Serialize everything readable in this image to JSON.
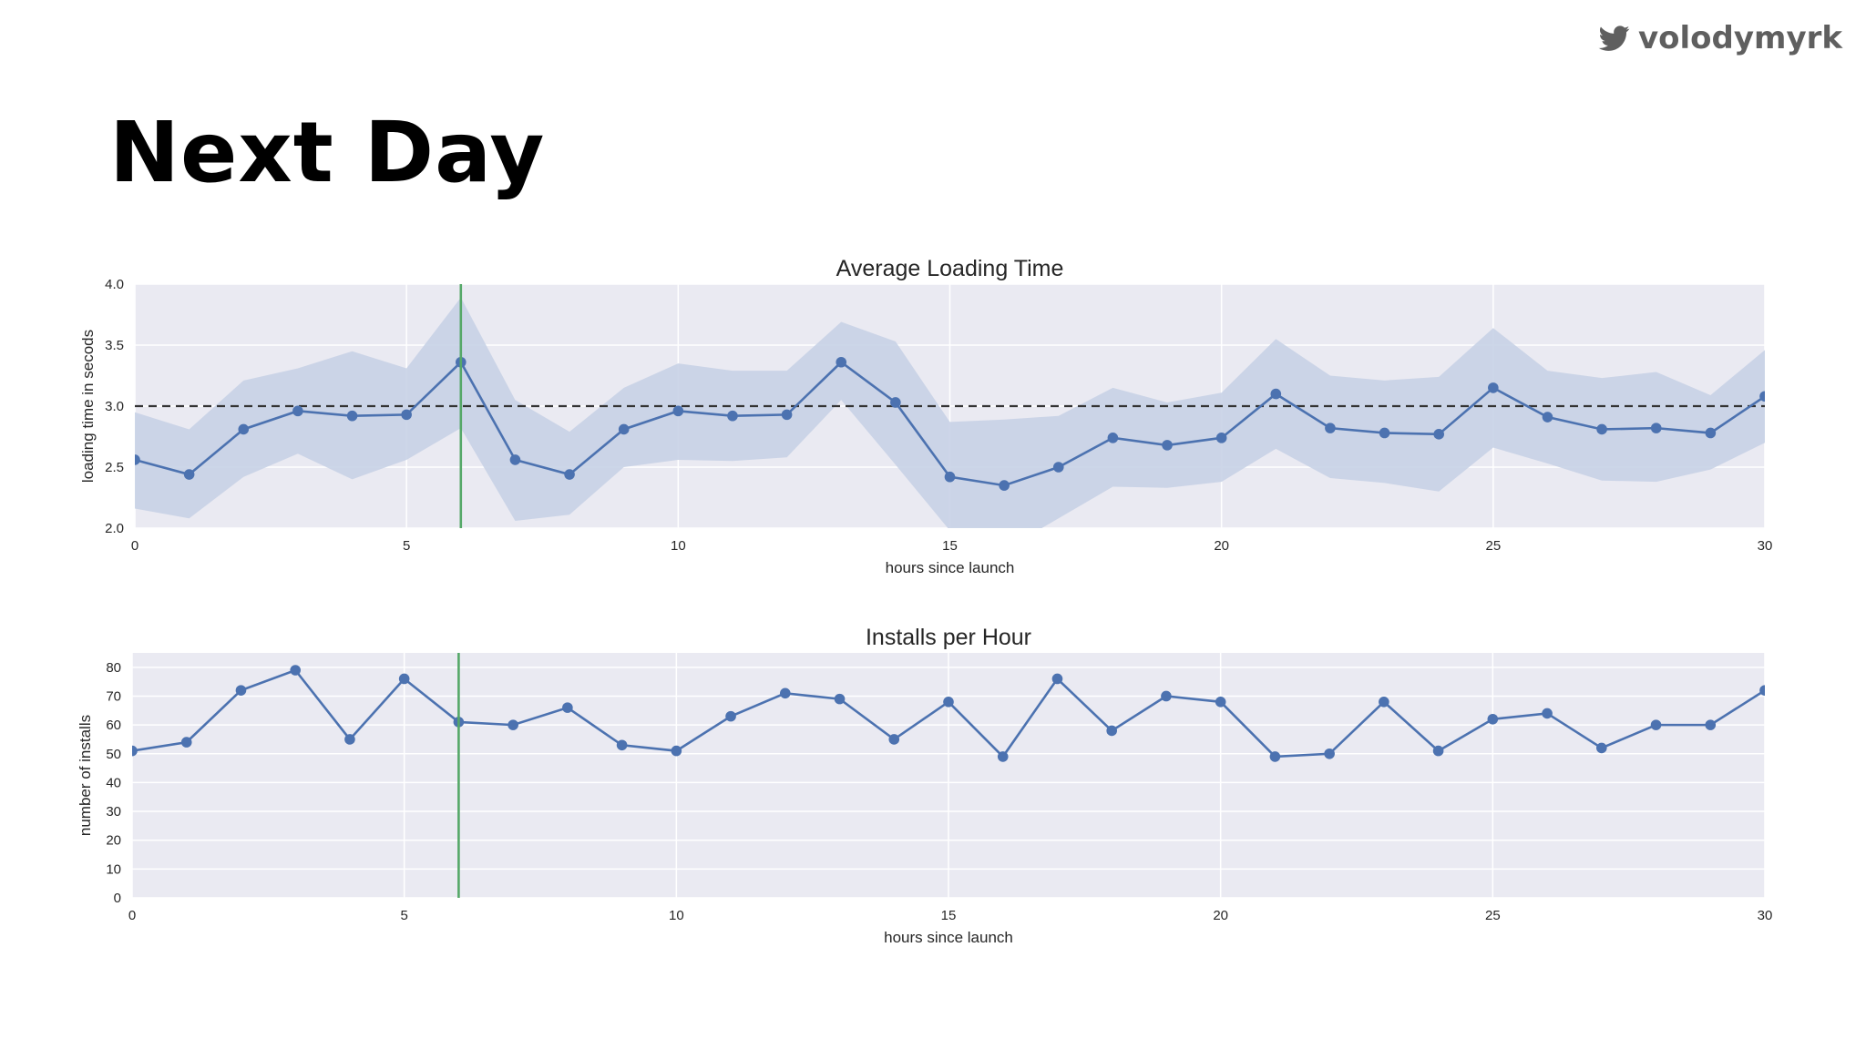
{
  "slide": {
    "title": "Next Day",
    "handle": "volodymyrk",
    "handle_icon": "twitter-bird-icon"
  },
  "chart_data": [
    {
      "type": "line",
      "title": "Average Loading Time",
      "xlabel": "hours since launch",
      "ylabel": "loading time in secods",
      "xlim": [
        0,
        30
      ],
      "ylim": [
        2.0,
        4.0
      ],
      "xticks": [
        0,
        5,
        10,
        15,
        20,
        25,
        30
      ],
      "yticks": [
        2.0,
        2.5,
        3.0,
        3.5,
        4.0
      ],
      "ytick_labels": [
        "2.0",
        "2.5",
        "3.0",
        "3.5",
        "4.0"
      ],
      "grid": true,
      "x": [
        0,
        1,
        2,
        3,
        4,
        5,
        6,
        7,
        8,
        9,
        10,
        11,
        12,
        13,
        14,
        15,
        16,
        17,
        18,
        19,
        20,
        21,
        22,
        23,
        24,
        25,
        26,
        27,
        28,
        29,
        30
      ],
      "series": [
        {
          "values": [
            2.56,
            2.44,
            2.81,
            2.96,
            2.92,
            2.93,
            3.36,
            2.56,
            2.44,
            2.81,
            2.96,
            2.92,
            2.93,
            3.36,
            3.03,
            2.42,
            2.35,
            2.5,
            2.74,
            2.68,
            2.74,
            3.1,
            2.82,
            2.78,
            2.77,
            3.15,
            2.91,
            2.81,
            2.82,
            2.78,
            3.08
          ],
          "band_low": [
            2.16,
            2.08,
            2.42,
            2.61,
            2.4,
            2.56,
            2.82,
            2.06,
            2.11,
            2.5,
            2.56,
            2.55,
            2.58,
            3.05,
            2.52,
            1.98,
            1.82,
            2.08,
            2.34,
            2.33,
            2.38,
            2.65,
            2.41,
            2.37,
            2.3,
            2.66,
            2.53,
            2.39,
            2.38,
            2.48,
            2.7
          ],
          "band_high": [
            2.95,
            2.81,
            3.21,
            3.31,
            3.45,
            3.31,
            3.89,
            3.05,
            2.79,
            3.15,
            3.35,
            3.29,
            3.29,
            3.69,
            3.53,
            2.87,
            2.89,
            2.92,
            3.15,
            3.03,
            3.11,
            3.55,
            3.25,
            3.21,
            3.24,
            3.64,
            3.29,
            3.23,
            3.28,
            3.09,
            3.46
          ],
          "color": "#4c72b0",
          "band_color": "#c8d2e6"
        }
      ],
      "reference_line": {
        "y": 3.0,
        "style": "dashed",
        "color": "#333333"
      },
      "marker_line": {
        "x": 6,
        "color": "#55a868"
      }
    },
    {
      "type": "line",
      "title": "Installs per Hour",
      "xlabel": "hours since launch",
      "ylabel": "number of installs",
      "xlim": [
        0,
        30
      ],
      "ylim": [
        0,
        85
      ],
      "xticks": [
        0,
        5,
        10,
        15,
        20,
        25,
        30
      ],
      "yticks": [
        0,
        10,
        20,
        30,
        40,
        50,
        60,
        70,
        80
      ],
      "grid": true,
      "x": [
        0,
        1,
        2,
        3,
        4,
        5,
        6,
        7,
        8,
        9,
        10,
        11,
        12,
        13,
        14,
        15,
        16,
        17,
        18,
        19,
        20,
        21,
        22,
        23,
        24,
        25,
        26,
        27,
        28,
        29,
        30
      ],
      "series": [
        {
          "values": [
            51,
            54,
            72,
            79,
            55,
            76,
            61,
            60,
            66,
            53,
            51,
            63,
            71,
            69,
            55,
            68,
            49,
            76,
            58,
            70,
            68,
            49,
            50,
            68,
            51,
            62,
            64,
            52,
            60,
            60,
            72
          ],
          "color": "#4c72b0"
        }
      ],
      "marker_line": {
        "x": 6,
        "color": "#55a868"
      }
    }
  ]
}
